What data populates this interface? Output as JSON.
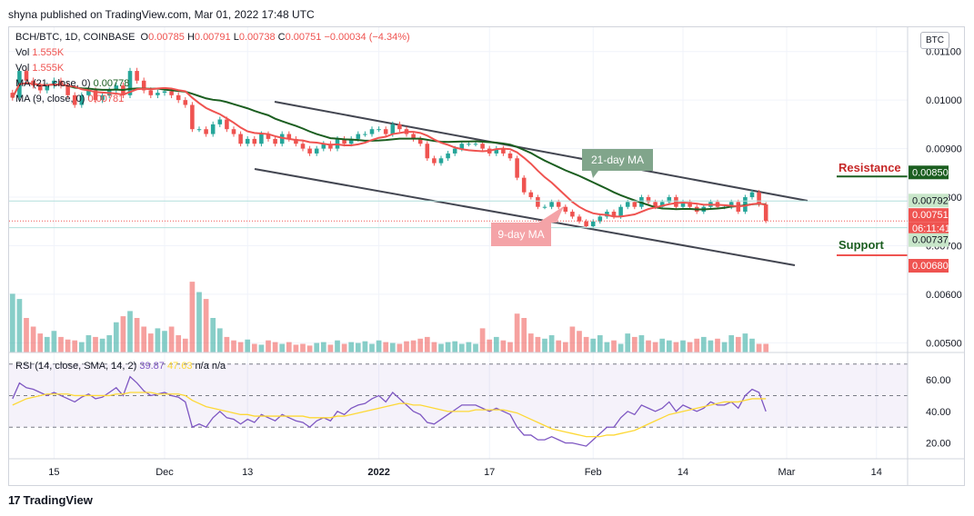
{
  "publisher_line": "shyna published on TradingView.com, Mar 01, 2022 17:48 UTC",
  "footer_brand": "TradingView",
  "footer_logo": "17",
  "currency_button": "BTC",
  "legend": {
    "symbol": "BCH/BTC, 1D, COINBASE",
    "open_label": "O",
    "open": "0.00785",
    "high_label": "H",
    "high": "0.00791",
    "low_label": "L",
    "low": "0.00738",
    "close_label": "C",
    "close": "0.00751",
    "change": "−0.00034 (−4.34%)",
    "vol1_label": "Vol",
    "vol1": "1.555K",
    "vol2_label": "Vol",
    "vol2": "1.555K",
    "ma21_label": "MA (21, close, 0)",
    "ma21": "0.00778",
    "ma9_label": "MA (9, close, 0)",
    "ma9": "0.00781"
  },
  "rsi_legend": {
    "label": "RSI (14, close, SMA, 14, 2)",
    "rsi": "39.87",
    "sma": "47.63",
    "extra": "n/a n/a"
  },
  "annotations": {
    "ma21": "21-day MA",
    "ma9": "9-day MA",
    "resistance": "Resistance",
    "support": "Support"
  },
  "price_badges": {
    "resistance": "0.00850",
    "upper_line": "0.00792",
    "current": "0.00751",
    "countdown": "06:11:41",
    "support": "0.00737",
    "low": "0.00680"
  },
  "colors": {
    "up": "#26a69a",
    "down": "#ef5350",
    "ma21": "#1b5e20",
    "ma9": "#ef5350",
    "rsi": "#7e57c2",
    "rsi_sma": "#fdd835",
    "trend": "#434651"
  },
  "chart_data": {
    "type": "candlestick",
    "y_axis_ticks": [
      0.011,
      0.01,
      0.009,
      0.008,
      0.007,
      0.006,
      0.005
    ],
    "y_axis_labels": [
      "0.01100",
      "0.01000",
      "0.00900",
      "0.00800",
      "0.00700",
      "0.00600",
      "0.00500"
    ],
    "ylim": [
      0.0048,
      0.0115
    ],
    "rsi_ticks": [
      "60.00",
      "40.00",
      "20.00"
    ],
    "rsi_levels": [
      70,
      50,
      30
    ],
    "x_axis_labels": [
      {
        "label": "15",
        "day": 6
      },
      {
        "label": "Dec",
        "day": 22
      },
      {
        "label": "13",
        "day": 34
      },
      {
        "label": "2022",
        "day": 53
      },
      {
        "label": "17",
        "day": 69
      },
      {
        "label": "Feb",
        "day": 84
      },
      {
        "label": "14",
        "day": 97
      },
      {
        "label": "Mar",
        "day": 112
      },
      {
        "label": "14",
        "day": 125
      }
    ],
    "total_days": 130,
    "resistance_level": 0.0085,
    "support_level": 0.00737,
    "upper_line_level": 0.00792,
    "current_level": 0.00751,
    "close_series": [
      0.01005,
      0.0106,
      0.0104,
      0.0103,
      0.0102,
      0.0103,
      0.0104,
      0.0103,
      0.0101,
      0.0099,
      0.0101,
      0.0102,
      0.01,
      0.0101,
      0.0102,
      0.0103,
      0.0101,
      0.0106,
      0.0104,
      0.0102,
      0.0101,
      0.01015,
      0.01018,
      0.0101,
      0.01,
      0.0099,
      0.0094,
      0.0094,
      0.0093,
      0.0095,
      0.0096,
      0.0094,
      0.0093,
      0.0091,
      0.0092,
      0.0091,
      0.0093,
      0.0092,
      0.0091,
      0.0093,
      0.0092,
      0.0091,
      0.009,
      0.0089,
      0.009,
      0.0091,
      0.009,
      0.0092,
      0.0091,
      0.0092,
      0.0093,
      0.0093,
      0.0094,
      0.0094,
      0.0093,
      0.0095,
      0.0094,
      0.0093,
      0.0092,
      0.0091,
      0.0088,
      0.0087,
      0.0088,
      0.0089,
      0.009,
      0.0091,
      0.0091,
      0.0091,
      0.009,
      0.0089,
      0.009,
      0.0089,
      0.0088,
      0.0084,
      0.0081,
      0.008,
      0.0078,
      0.0078,
      0.0079,
      0.0078,
      0.0077,
      0.0076,
      0.0075,
      0.0074,
      0.0075,
      0.0076,
      0.0077,
      0.0076,
      0.0078,
      0.0079,
      0.0078,
      0.008,
      0.0079,
      0.0078,
      0.0079,
      0.008,
      0.0078,
      0.0079,
      0.0078,
      0.0077,
      0.0078,
      0.0079,
      0.0078,
      0.0078,
      0.0079,
      0.0077,
      0.008,
      0.0081,
      0.00785,
      0.00751
    ],
    "volume_series": [
      0.68,
      0.62,
      0.4,
      0.3,
      0.22,
      0.18,
      0.25,
      0.18,
      0.15,
      0.14,
      0.12,
      0.2,
      0.18,
      0.16,
      0.2,
      0.35,
      0.42,
      0.48,
      0.4,
      0.3,
      0.22,
      0.28,
      0.25,
      0.3,
      0.2,
      0.16,
      0.82,
      0.7,
      0.62,
      0.4,
      0.28,
      0.18,
      0.14,
      0.12,
      0.15,
      0.1,
      0.09,
      0.14,
      0.12,
      0.1,
      0.12,
      0.09,
      0.1,
      0.08,
      0.11,
      0.12,
      0.09,
      0.14,
      0.1,
      0.12,
      0.11,
      0.13,
      0.1,
      0.14,
      0.12,
      0.11,
      0.1,
      0.13,
      0.14,
      0.16,
      0.18,
      0.12,
      0.1,
      0.12,
      0.13,
      0.1,
      0.12,
      0.1,
      0.28,
      0.15,
      0.18,
      0.14,
      0.12,
      0.45,
      0.4,
      0.22,
      0.18,
      0.16,
      0.2,
      0.14,
      0.12,
      0.3,
      0.25,
      0.18,
      0.16,
      0.2,
      0.12,
      0.14,
      0.1,
      0.22,
      0.18,
      0.2,
      0.14,
      0.12,
      0.16,
      0.14,
      0.12,
      0.14,
      0.12,
      0.16,
      0.18,
      0.14,
      0.16,
      0.12,
      0.2,
      0.18,
      0.22,
      0.16,
      0.1,
      0.1
    ],
    "rsi_series": [
      48,
      58,
      55,
      54,
      52,
      50,
      52,
      50,
      48,
      46,
      49,
      51,
      48,
      49,
      52,
      55,
      50,
      62,
      58,
      53,
      50,
      51,
      52,
      50,
      49,
      46,
      30,
      32,
      30,
      36,
      40,
      36,
      35,
      32,
      35,
      33,
      38,
      36,
      34,
      38,
      36,
      34,
      33,
      30,
      34,
      36,
      34,
      40,
      38,
      42,
      44,
      45,
      48,
      50,
      46,
      52,
      48,
      44,
      40,
      38,
      33,
      32,
      35,
      38,
      41,
      44,
      44,
      44,
      42,
      40,
      42,
      40,
      38,
      30,
      25,
      25,
      22,
      22,
      24,
      22,
      20,
      20,
      19,
      18,
      22,
      26,
      30,
      30,
      36,
      40,
      38,
      44,
      42,
      40,
      42,
      46,
      40,
      44,
      42,
      40,
      42,
      46,
      44,
      44,
      46,
      42,
      50,
      54,
      52,
      40
    ],
    "rsi_sma_series": [
      44,
      46,
      48,
      49,
      50,
      51,
      51,
      51,
      51,
      50,
      50,
      50,
      50,
      50,
      50,
      51,
      51,
      52,
      52,
      52,
      52,
      51,
      51,
      51,
      51,
      50,
      47,
      45,
      43,
      42,
      41,
      40,
      39,
      38,
      38,
      37,
      37,
      37,
      37,
      37,
      37,
      37,
      37,
      36,
      36,
      36,
      36,
      37,
      37,
      38,
      39,
      40,
      41,
      42,
      43,
      44,
      45,
      45,
      44,
      44,
      43,
      42,
      41,
      40,
      40,
      40,
      40,
      41,
      41,
      41,
      41,
      41,
      40,
      39,
      37,
      35,
      33,
      31,
      29,
      28,
      27,
      26,
      25,
      24,
      24,
      24,
      25,
      25,
      26,
      27,
      28,
      30,
      32,
      34,
      36,
      38,
      39,
      40,
      41,
      42,
      43,
      44,
      45,
      46,
      46,
      46,
      47,
      48,
      48,
      48
    ]
  }
}
